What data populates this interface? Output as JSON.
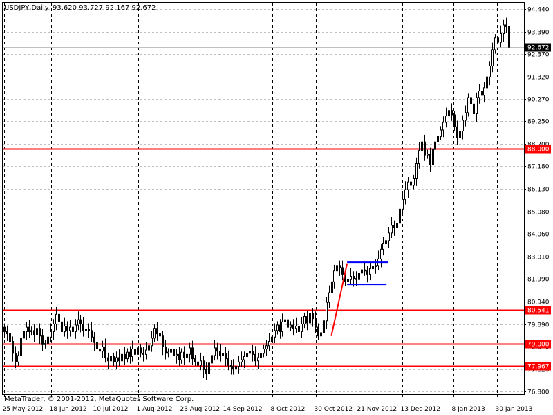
{
  "header": {
    "symbol_label": "USDJPY,Daily",
    "ohlc_label": "93.620 93.727 92.167 92.672"
  },
  "footer": {
    "copyright": "MetaTrader, © 2001-2012, MetaQuotes Software Corp."
  },
  "colors": {
    "background": "#ffffff",
    "candle": "#000000",
    "level_line": "#ff0000",
    "channel_line": "#0000ff",
    "current_price_badge": "#000000",
    "level_badge": "#ff0000"
  },
  "chart_data": {
    "type": "candlestick",
    "symbol": "USDJPY",
    "timeframe": "Daily",
    "last_ohlc": {
      "open": 93.62,
      "high": 93.727,
      "low": 92.167,
      "close": 92.672
    },
    "current_price": 92.672,
    "price_range": [
      76.66,
      94.72
    ],
    "date_range": [
      "2012-05-25",
      "2013-02-05"
    ],
    "grid": true,
    "y_ticks": [
      "94.440",
      "93.390",
      "92.370",
      "91.320",
      "90.270",
      "89.250",
      "88.200",
      "87.180",
      "86.130",
      "85.080",
      "84.060",
      "83.010",
      "81.990",
      "80.940",
      "79.890",
      "78.870",
      "77.820",
      "76.800"
    ],
    "y_tick_values": [
      94.44,
      93.39,
      92.37,
      91.32,
      90.27,
      89.25,
      88.2,
      87.18,
      86.13,
      85.08,
      84.06,
      83.01,
      81.99,
      80.94,
      79.89,
      78.87,
      77.82,
      76.8
    ],
    "x_ticks": [
      "25 May 2012",
      "18 Jun 2012",
      "10 Jul 2012",
      "1 Aug 2012",
      "23 Aug 2012",
      "14 Sep 2012",
      "8 Oct 2012",
      "30 Oct 2012",
      "21 Nov 2012",
      "13 Dec 2012",
      "8 Jan 2013",
      "30 Jan 2013"
    ],
    "x_tick_dates": [
      "2012-05-25",
      "2012-06-18",
      "2012-07-10",
      "2012-08-01",
      "2012-08-23",
      "2012-09-14",
      "2012-10-08",
      "2012-10-30",
      "2012-11-21",
      "2012-12-13",
      "2013-01-08",
      "2013-01-30"
    ],
    "horizontal_levels": [
      {
        "label": "88.000",
        "value": 88.0
      },
      {
        "label": "80.541",
        "value": 80.541
      },
      {
        "label": "79.000",
        "value": 79.0
      },
      {
        "label": "77.967",
        "value": 77.967
      }
    ],
    "trend_line": {
      "from": {
        "date": "2012-11-07",
        "price": 79.35
      },
      "to": {
        "date": "2012-11-15",
        "price": 82.7
      }
    },
    "channel_lines": [
      {
        "from_date": "2012-11-15",
        "to_date": "2012-12-06",
        "price": 82.75
      },
      {
        "from_date": "2012-11-15",
        "to_date": "2012-12-05",
        "price": 81.73
      }
    ],
    "closes": [
      79.55,
      79.45,
      79.1,
      78.55,
      78.15,
      78.45,
      79.25,
      79.55,
      79.75,
      79.55,
      79.6,
      79.4,
      79.7,
      79.35,
      78.95,
      79.0,
      79.3,
      79.55,
      79.9,
      80.35,
      80.0,
      79.55,
      79.8,
      79.6,
      79.75,
      79.55,
      79.85,
      80.1,
      79.9,
      79.6,
      79.65,
      79.6,
      79.3,
      79.05,
      78.75,
      78.65,
      78.85,
      78.35,
      78.2,
      78.4,
      78.15,
      78.35,
      78.2,
      78.5,
      78.3,
      78.6,
      78.4,
      78.75,
      78.5,
      78.8,
      78.55,
      78.5,
      78.7,
      78.9,
      79.25,
      79.7,
      79.45,
      79.35,
      78.85,
      78.55,
      78.6,
      78.75,
      78.45,
      78.5,
      78.25,
      78.6,
      78.35,
      78.5,
      78.8,
      78.3,
      78.15,
      78.0,
      78.2,
      77.8,
      77.6,
      78.1,
      78.45,
      78.8,
      78.65,
      78.45,
      78.55,
      78.3,
      78.0,
      77.95,
      77.85,
      77.95,
      78.15,
      78.25,
      78.4,
      78.55,
      78.65,
      78.5,
      78.2,
      78.35,
      78.55,
      78.75,
      78.9,
      79.1,
      79.3,
      79.6,
      79.85,
      79.55,
      80.0,
      80.1,
      79.75,
      79.85,
      79.7,
      79.8,
      79.55,
      79.9,
      80.25,
      79.95,
      80.4,
      80.15,
      79.75,
      79.35,
      79.5,
      80.05,
      80.9,
      81.35,
      81.85,
      82.35,
      82.6,
      82.5,
      82.2,
      81.85,
      81.95,
      82.1,
      82.0,
      81.95,
      82.25,
      82.4,
      82.35,
      82.2,
      82.45,
      82.55,
      82.6,
      82.9,
      83.35,
      83.6,
      83.75,
      84.1,
      84.45,
      84.35,
      84.55,
      85.2,
      85.65,
      86.1,
      86.45,
      86.3,
      86.6,
      87.3,
      87.9,
      88.3,
      87.7,
      87.75,
      87.25,
      87.95,
      88.3,
      88.55,
      88.85,
      89.2,
      89.5,
      89.75,
      89.55,
      89.0,
      88.5,
      88.8,
      89.3,
      89.65,
      90.35,
      90.05,
      89.6,
      90.35,
      90.65,
      90.45,
      90.8,
      91.3,
      91.8,
      92.55,
      93.1,
      92.9,
      93.3,
      93.7,
      93.62,
      92.67
    ]
  }
}
